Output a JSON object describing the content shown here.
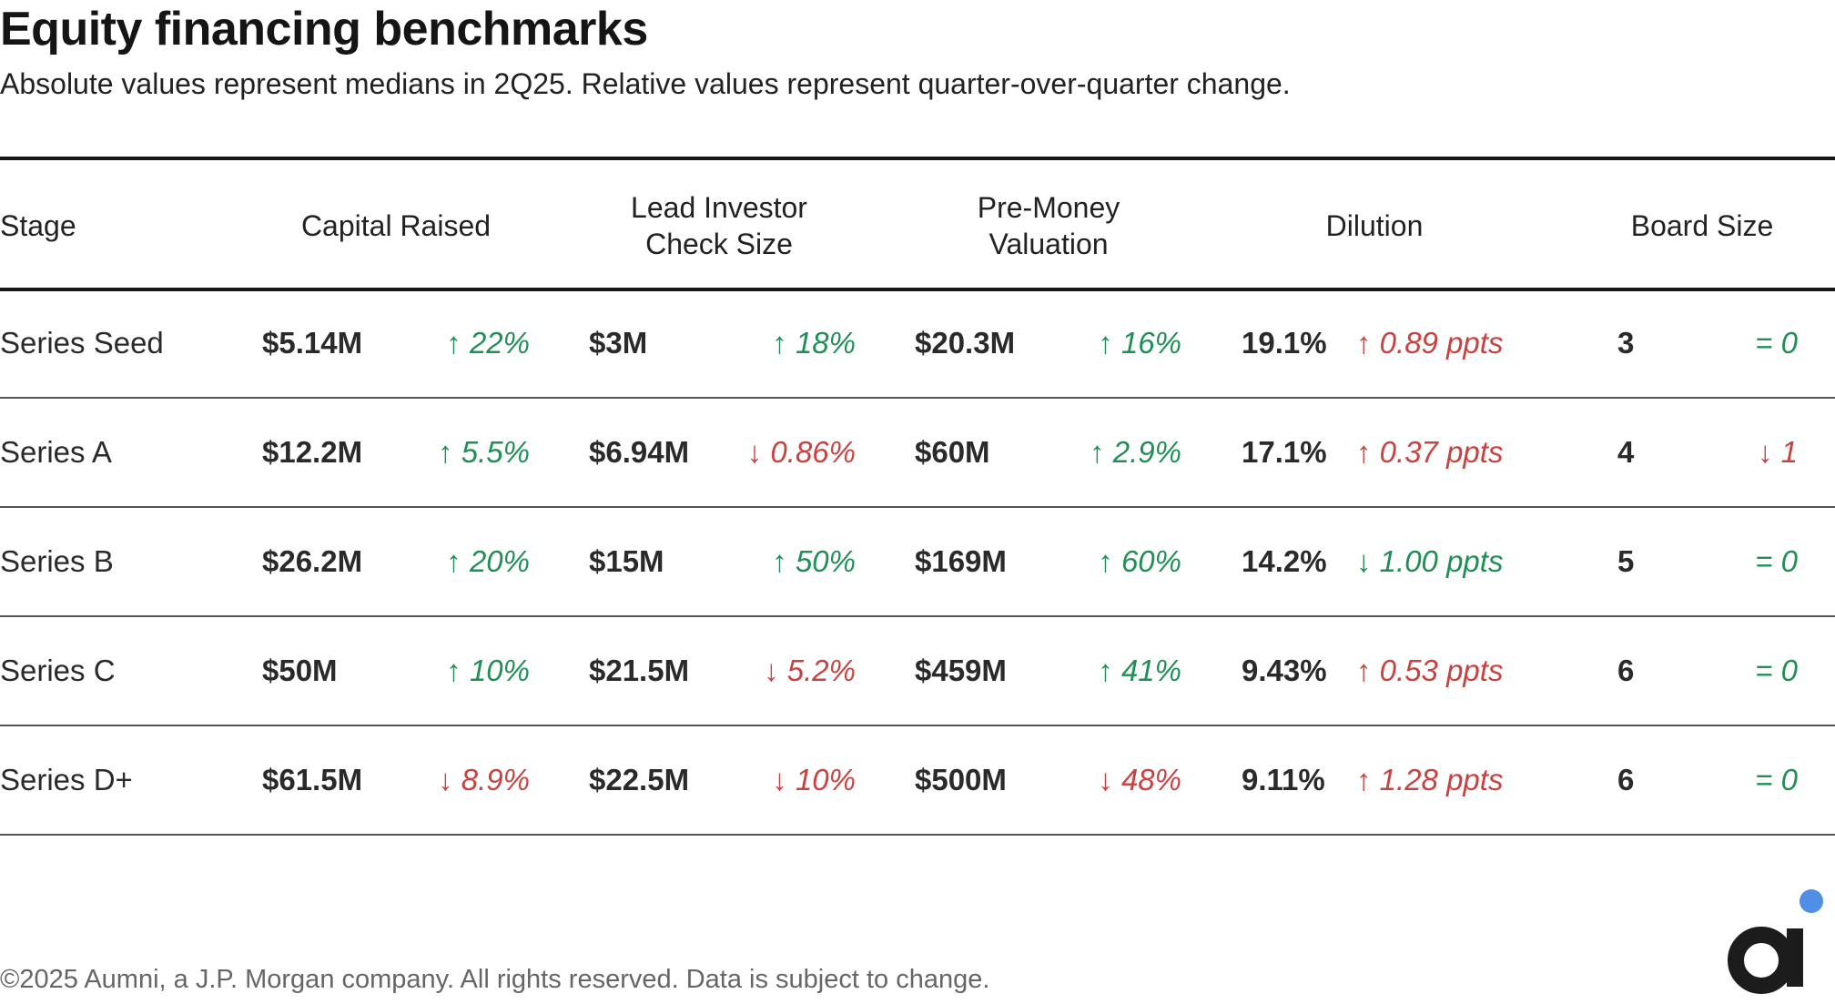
{
  "title": "Equity financing benchmarks",
  "subtitle": "Absolute values represent medians in 2Q25. Relative values represent quarter-over-quarter change.",
  "headers": {
    "stage": "Stage",
    "capital_raised": "Capital Raised",
    "lead_check_l1": "Lead Investor",
    "lead_check_l2": "Check Size",
    "premoney_l1": "Pre-Money",
    "premoney_l2": "Valuation",
    "dilution": "Dilution",
    "board_size": "Board Size"
  },
  "rows": [
    {
      "stage": "Series Seed",
      "capital": "$5.14M",
      "capital_chg": "↑ 22%",
      "check": "$3M",
      "check_chg": "↑ 18%",
      "premoney": "$20.3M",
      "premoney_chg": "↑ 16%",
      "dilution": "19.1%",
      "dilution_chg": "↑ 0.89 ppts",
      "board": "3",
      "board_chg": "= 0"
    },
    {
      "stage": "Series A",
      "capital": "$12.2M",
      "capital_chg": "↑ 5.5%",
      "check": "$6.94M",
      "check_chg": "↓ 0.86%",
      "premoney": "$60M",
      "premoney_chg": "↑ 2.9%",
      "dilution": "17.1%",
      "dilution_chg": "↑ 0.37 ppts",
      "board": "4",
      "board_chg": "↓ 1"
    },
    {
      "stage": "Series B",
      "capital": "$26.2M",
      "capital_chg": "↑ 20%",
      "check": "$15M",
      "check_chg": "↑ 50%",
      "premoney": "$169M",
      "premoney_chg": "↑ 60%",
      "dilution": "14.2%",
      "dilution_chg": "↓ 1.00 ppts",
      "board": "5",
      "board_chg": "= 0"
    },
    {
      "stage": "Series C",
      "capital": "$50M",
      "capital_chg": "↑ 10%",
      "check": "$21.5M",
      "check_chg": "↓ 5.2%",
      "premoney": "$459M",
      "premoney_chg": "↑ 41%",
      "dilution": "9.43%",
      "dilution_chg": "↑ 0.53 ppts",
      "board": "6",
      "board_chg": "= 0"
    },
    {
      "stage": "Series D+",
      "capital": "$61.5M",
      "capital_chg": "↓ 8.9%",
      "check": "$22.5M",
      "check_chg": "↓ 10%",
      "premoney": "$500M",
      "premoney_chg": "↓ 48%",
      "dilution": "9.11%",
      "dilution_chg": "↑ 1.28 ppts",
      "board": "6",
      "board_chg": "= 0"
    }
  ],
  "colors": {
    "positive": "#1f8f56",
    "negative": "#c9423f",
    "logo_dot": "#4f8fe6",
    "logo_mark": "#1c1c1c"
  },
  "footer": "©2025 Aumni, a J.P. Morgan company. All rights reserved. Data is subject to change."
}
